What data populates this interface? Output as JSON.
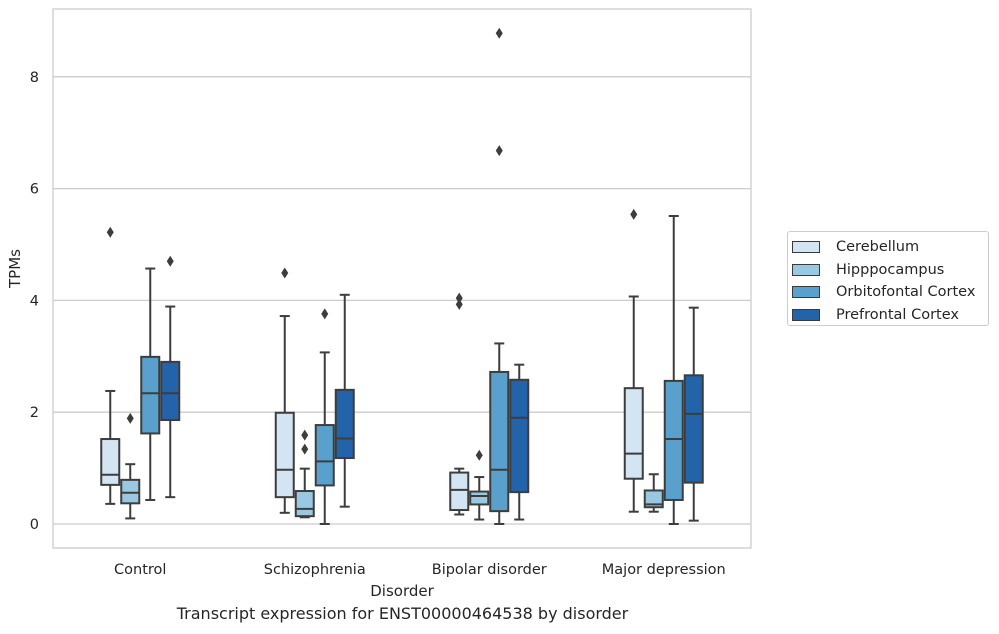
{
  "chart_data": {
    "type": "box",
    "title": "",
    "xlabel": "Disorder",
    "ylabel": "TPMs",
    "caption": "Transcript expression for ENST00000464538 by disorder",
    "ylim": [
      -0.42,
      9.3
    ],
    "yticks": [
      0,
      2,
      4,
      6,
      8
    ],
    "grid": true,
    "legend_position": "right",
    "categories": [
      "Control",
      "Schizophrenia",
      "Bipolar disorder",
      "Major depression"
    ],
    "series": [
      {
        "name": "Cerebellum",
        "color": "#d3e4f3",
        "boxes": [
          {
            "whislo": 0.36,
            "q1": 0.7,
            "med": 0.88,
            "q3": 1.52,
            "whishi": 2.38,
            "fliers": [
              5.22
            ]
          },
          {
            "whislo": 0.2,
            "q1": 0.48,
            "med": 0.97,
            "q3": 1.99,
            "whishi": 3.72,
            "fliers": [
              4.49
            ]
          },
          {
            "whislo": 0.17,
            "q1": 0.25,
            "med": 0.61,
            "q3": 0.92,
            "whishi": 0.99,
            "fliers": [
              3.93,
              4.04
            ]
          },
          {
            "whislo": 0.22,
            "q1": 0.81,
            "med": 1.26,
            "q3": 2.43,
            "whishi": 4.07,
            "fliers": [
              5.54
            ]
          }
        ]
      },
      {
        "name": "Hipppocampus",
        "color": "#9ac8e0",
        "boxes": [
          {
            "whislo": 0.1,
            "q1": 0.37,
            "med": 0.56,
            "q3": 0.79,
            "whishi": 1.07,
            "fliers": [
              1.89
            ]
          },
          {
            "whislo": 0.12,
            "q1": 0.14,
            "med": 0.27,
            "q3": 0.59,
            "whishi": 0.99,
            "fliers": [
              1.34,
              1.59
            ]
          },
          {
            "whislo": 0.08,
            "q1": 0.35,
            "med": 0.5,
            "q3": 0.58,
            "whishi": 0.84,
            "fliers": [
              1.23
            ]
          },
          {
            "whislo": 0.22,
            "q1": 0.3,
            "med": 0.35,
            "q3": 0.6,
            "whishi": 0.89,
            "fliers": []
          }
        ]
      },
      {
        "name": "Orbitofontal Cortex",
        "color": "#5aa0cd",
        "boxes": [
          {
            "whislo": 0.43,
            "q1": 1.62,
            "med": 2.34,
            "q3": 2.99,
            "whishi": 4.57,
            "fliers": []
          },
          {
            "whislo": 0.0,
            "q1": 0.69,
            "med": 1.12,
            "q3": 1.77,
            "whishi": 3.07,
            "fliers": [
              3.76
            ]
          },
          {
            "whislo": 0.0,
            "q1": 0.23,
            "med": 0.97,
            "q3": 2.72,
            "whishi": 3.23,
            "fliers": [
              6.68,
              8.78
            ]
          },
          {
            "whislo": 0.0,
            "q1": 0.43,
            "med": 1.52,
            "q3": 2.56,
            "whishi": 5.51,
            "fliers": []
          }
        ]
      },
      {
        "name": "Prefrontal Cortex",
        "color": "#2363aa",
        "boxes": [
          {
            "whislo": 0.48,
            "q1": 1.86,
            "med": 2.34,
            "q3": 2.9,
            "whishi": 3.89,
            "fliers": [
              4.7
            ]
          },
          {
            "whislo": 0.31,
            "q1": 1.18,
            "med": 1.53,
            "q3": 2.4,
            "whishi": 4.1,
            "fliers": []
          },
          {
            "whislo": 0.08,
            "q1": 0.57,
            "med": 1.9,
            "q3": 2.58,
            "whishi": 2.85,
            "fliers": []
          },
          {
            "whislo": 0.06,
            "q1": 0.74,
            "med": 1.97,
            "q3": 2.66,
            "whishi": 3.87,
            "fliers": []
          }
        ]
      }
    ]
  }
}
